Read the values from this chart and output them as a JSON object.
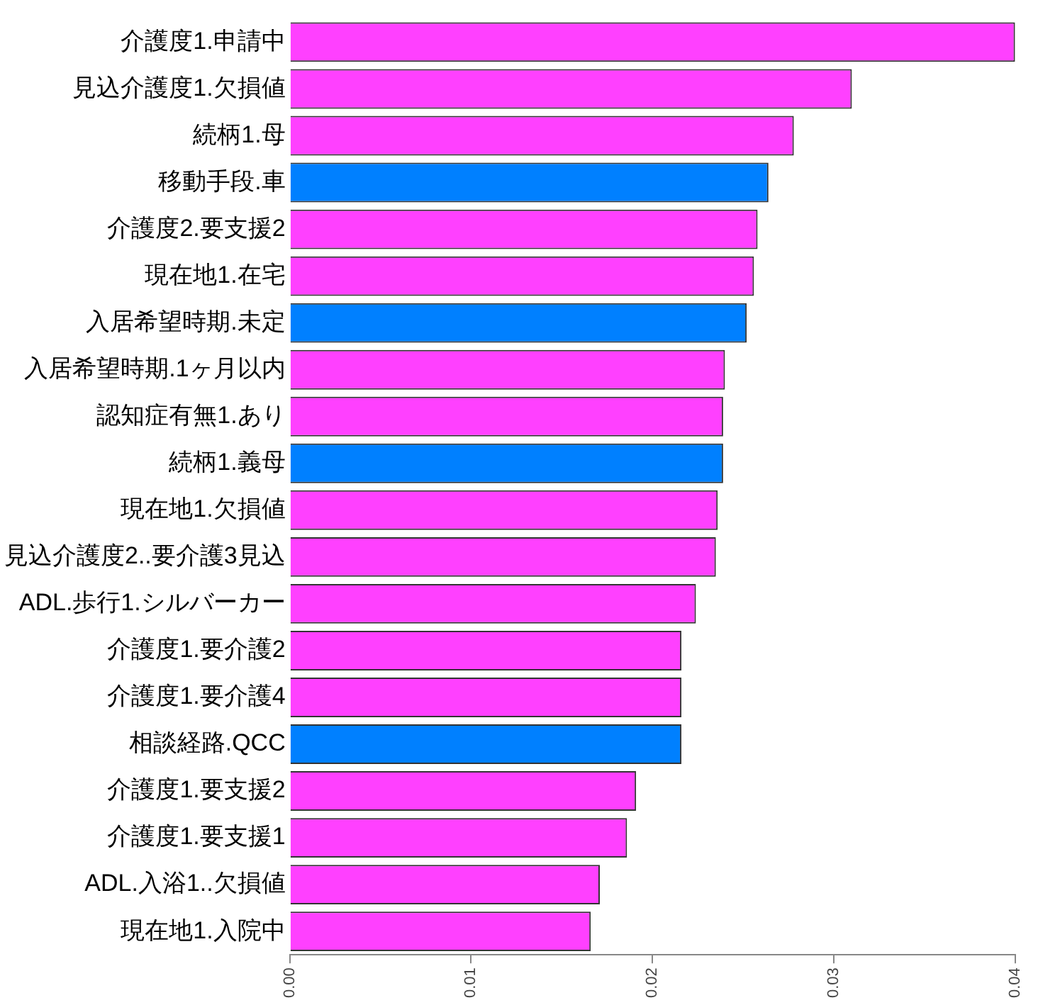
{
  "chart_data": {
    "type": "bar",
    "orientation": "horizontal",
    "categories": [
      "介護度1.申請中",
      "見込介護度1.欠損値",
      "続柄1.母",
      "移動手段.車",
      "介護度2.要支援2",
      "現在地1.在宅",
      "入居希望時期.未定",
      "入居希望時期.1ヶ月以内",
      "認知症有無1.あり",
      "続柄1.義母",
      "現在地1.欠損値",
      "見込介護度2..要介護3見込",
      "ADL.歩行1.シルバーカー",
      "介護度1.要介護2",
      "介護度1.要介護4",
      "相談経路.QCC",
      "介護度1.要支援2",
      "介護度1.要支援1",
      "ADL.入浴1..欠損値",
      "現在地1.入院中"
    ],
    "values": [
      0.04,
      0.031,
      0.0278,
      0.0264,
      0.0258,
      0.0256,
      0.0252,
      0.024,
      0.0239,
      0.0239,
      0.0236,
      0.0235,
      0.0224,
      0.0216,
      0.0216,
      0.0216,
      0.0191,
      0.0186,
      0.0171,
      0.0166
    ],
    "colors": [
      "#ff40ff",
      "#ff40ff",
      "#ff40ff",
      "#0080ff",
      "#ff40ff",
      "#ff40ff",
      "#0080ff",
      "#ff40ff",
      "#ff40ff",
      "#0080ff",
      "#ff40ff",
      "#ff40ff",
      "#ff40ff",
      "#ff40ff",
      "#ff40ff",
      "#0080ff",
      "#ff40ff",
      "#ff40ff",
      "#ff40ff",
      "#ff40ff"
    ],
    "xlim": [
      0,
      0.04
    ],
    "xticks": [
      {
        "value": 0,
        "label": "0.00"
      },
      {
        "value": 0.01,
        "label": "0.01"
      },
      {
        "value": 0.02,
        "label": "0.02"
      },
      {
        "value": 0.03,
        "label": "0.03"
      },
      {
        "value": 0.04,
        "label": "0.04"
      }
    ],
    "grid": false,
    "legend": false
  }
}
